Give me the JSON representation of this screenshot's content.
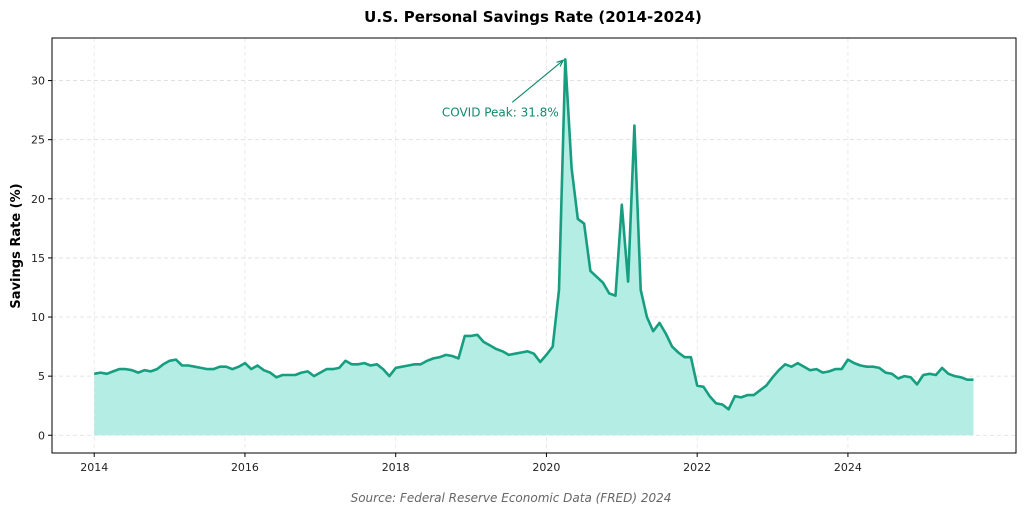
{
  "chart_data": {
    "type": "area",
    "title": "U.S. Personal Savings Rate (2014-2024)",
    "ylabel": "Savings Rate (%)",
    "xlabel": "",
    "source": "Source: Federal Reserve Economic Data (FRED) 2024",
    "xlim": [
      2013.44,
      2026.23
    ],
    "ylim": [
      -1.5,
      33.6
    ],
    "xticks": [
      "2014",
      "2016",
      "2018",
      "2020",
      "2022",
      "2024"
    ],
    "yticks": [
      0,
      5,
      10,
      15,
      20,
      25,
      30
    ],
    "grid": true,
    "start": "2014-01",
    "frequency": "monthly",
    "values": [
      5.2,
      5.3,
      5.2,
      5.4,
      5.6,
      5.6,
      5.5,
      5.3,
      5.5,
      5.4,
      5.6,
      6.0,
      6.3,
      6.4,
      5.9,
      5.9,
      5.8,
      5.7,
      5.6,
      5.6,
      5.8,
      5.8,
      5.6,
      5.8,
      6.1,
      5.6,
      5.9,
      5.5,
      5.3,
      4.9,
      5.1,
      5.1,
      5.1,
      5.3,
      5.4,
      5.0,
      5.3,
      5.6,
      5.6,
      5.7,
      6.3,
      6.0,
      6.0,
      6.1,
      5.9,
      6.0,
      5.6,
      5.0,
      5.7,
      5.8,
      5.9,
      6.0,
      6.0,
      6.3,
      6.5,
      6.6,
      6.8,
      6.7,
      6.5,
      8.4,
      8.4,
      8.5,
      7.9,
      7.6,
      7.3,
      7.1,
      6.8,
      6.9,
      7.0,
      7.1,
      6.9,
      6.2,
      6.8,
      7.5,
      12.3,
      31.8,
      22.6,
      18.3,
      17.9,
      13.9,
      13.4,
      12.9,
      12.0,
      11.8,
      19.5,
      13.0,
      26.2,
      12.3,
      10.0,
      8.8,
      9.5,
      8.6,
      7.5,
      7.0,
      6.6,
      6.6,
      4.2,
      4.1,
      3.3,
      2.7,
      2.6,
      2.2,
      3.3,
      3.2,
      3.4,
      3.4,
      3.8,
      4.2,
      4.9,
      5.5,
      6.0,
      5.8,
      6.1,
      5.8,
      5.5,
      5.6,
      5.3,
      5.4,
      5.6,
      5.6,
      6.4,
      6.1,
      5.9,
      5.8,
      5.8,
      5.7,
      5.3,
      5.2,
      4.8,
      5.0,
      4.9,
      4.3,
      5.1,
      5.2,
      5.1,
      5.7,
      5.2,
      5.0,
      4.9,
      4.7,
      4.7
    ],
    "annotation": {
      "text": "COVID Peak: 31.8%",
      "x": "2020-04",
      "y": 31.8
    },
    "colors": {
      "line": "#179e80",
      "fill": "#b3ede3",
      "annotation": "#138a6e"
    }
  }
}
